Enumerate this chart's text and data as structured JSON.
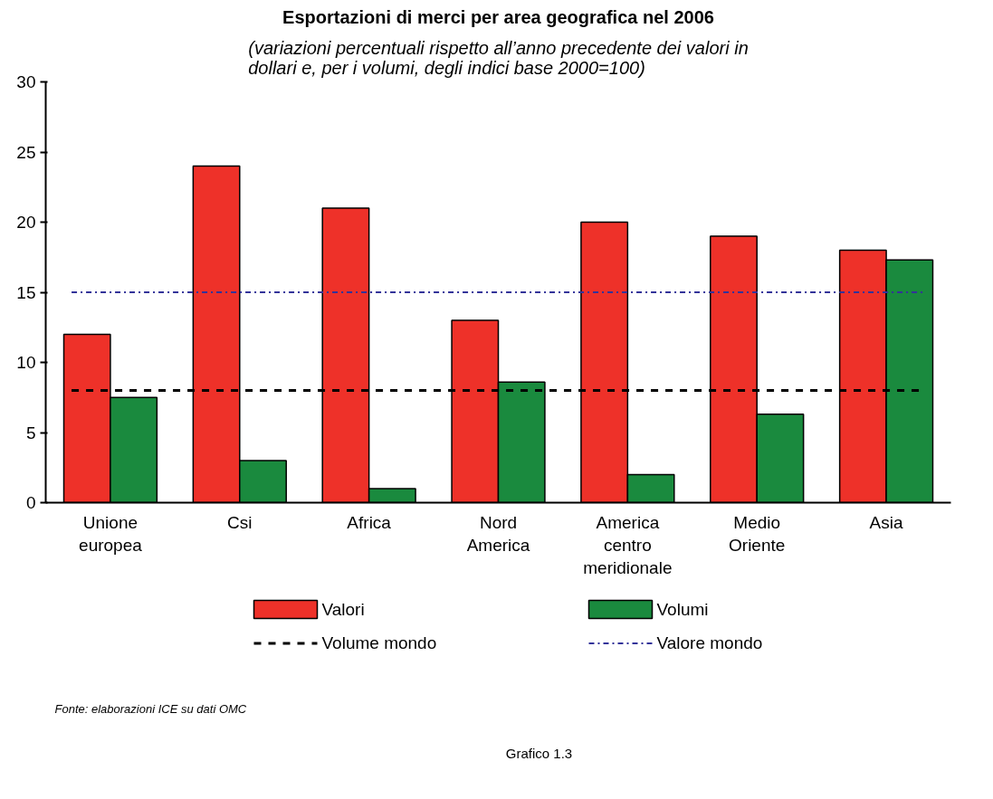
{
  "chart_data": {
    "type": "bar",
    "title": "Esportazioni di merci per area geografica nel 2006",
    "subtitle": "(variazioni percentuali rispetto all’anno precedente dei valori in dollari e, per i volumi, degli indici base 2000=100)",
    "categories": [
      "Unione europea",
      "Csi",
      "Africa",
      "Nord America",
      "America centro meridionale",
      "Medio Oriente",
      "Asia"
    ],
    "series": [
      {
        "name": "Valori",
        "color": "#ee3129",
        "values": [
          12,
          24,
          21,
          13,
          20,
          19,
          18
        ]
      },
      {
        "name": "Volumi",
        "color": "#1a8a3e",
        "values": [
          7.5,
          3,
          1,
          8.6,
          2,
          6.3,
          17.3
        ]
      }
    ],
    "ylim": [
      0,
      30
    ],
    "yticks": [
      0,
      5,
      10,
      15,
      20,
      25,
      30
    ],
    "grid": false,
    "legend": "bottom",
    "ref_lines": [
      {
        "axis": "y",
        "value": 8,
        "label": "Volume mondo",
        "color": "#000000",
        "line_style": "dashed"
      },
      {
        "axis": "y",
        "value": 15,
        "label": "Valore mondo",
        "color": "#333399",
        "line_style": "dashdot"
      }
    ],
    "annotations": [
      "Fonte: elaborazioni ICE su dati OMC",
      "Grafico 1.3"
    ]
  }
}
